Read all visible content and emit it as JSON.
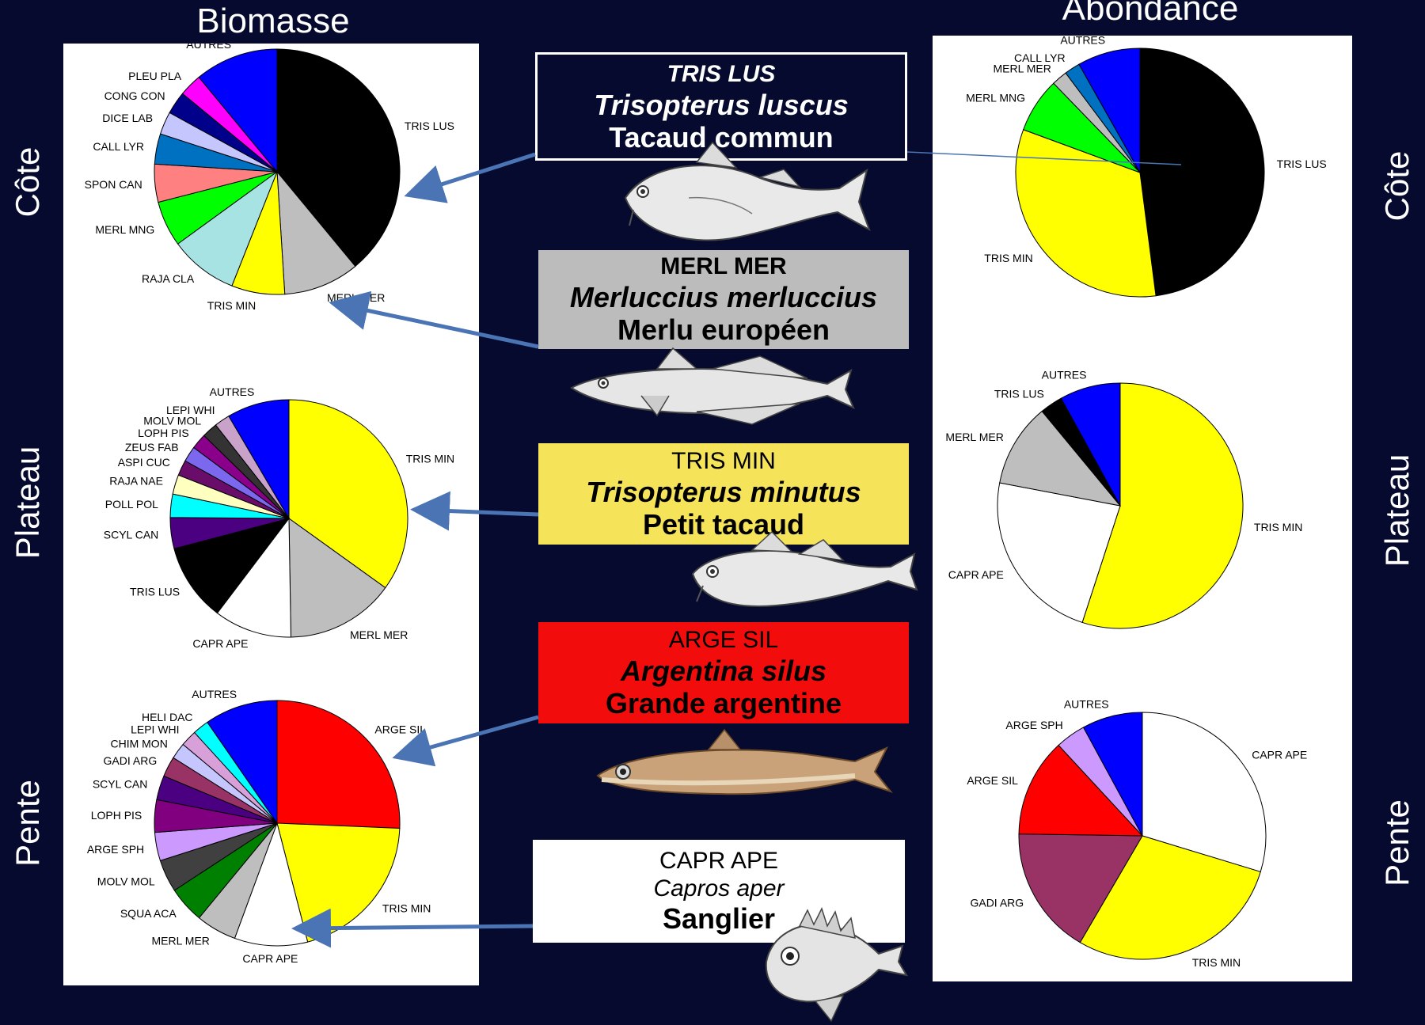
{
  "titles": {
    "left": "Biomasse",
    "right": "Abondance"
  },
  "rows": {
    "top": "Côte",
    "middle": "Plateau",
    "bottom": "Pente"
  },
  "species_boxes": [
    {
      "code": "TRIS LUS",
      "latin": "Trisopterus luscus",
      "common": "Tacaud commun",
      "bg": "#050a2e",
      "fg": "#ffffff",
      "border": "#ffffff"
    },
    {
      "code": "MERL MER",
      "latin": "Merluccius merluccius",
      "common": "Merlu européen",
      "bg": "#bcbcbc",
      "fg": "#000000",
      "border": "#9a9a9a"
    },
    {
      "code": "TRIS MIN",
      "latin": "Trisopterus minutus",
      "common": "Petit tacaud",
      "bg": "#f5e35a",
      "fg": "#000000",
      "border": "#d9c640"
    },
    {
      "code": "ARGE SIL",
      "latin": "Argentina silus",
      "common": "Grande argentine",
      "bg": "#f20c0c",
      "fg": "#000000",
      "border": "#c00000"
    },
    {
      "code": "CAPR APE",
      "latin": "Capros aper",
      "common": "Sanglier",
      "bg": "#ffffff",
      "fg": "#000000",
      "border": "#ffffff"
    }
  ],
  "fish_icons": [
    "tacaud-fish-icon",
    "merlu-fish-icon",
    "petit-tacaud-fish-icon",
    "argentine-fish-icon",
    "sanglier-fish-icon"
  ],
  "chart_data": [
    {
      "type": "pie",
      "title": "Biomasse",
      "row": "Côte",
      "slices": [
        {
          "label": "TRIS LUS",
          "value": 39,
          "color": "#000000"
        },
        {
          "label": "MERL MER",
          "value": 10,
          "color": "#bebebe"
        },
        {
          "label": "TRIS MIN",
          "value": 7,
          "color": "#ffff00"
        },
        {
          "label": "RAJA CLA",
          "value": 9,
          "color": "#a7e3e3"
        },
        {
          "label": "MERL MNG",
          "value": 6,
          "color": "#00ff00"
        },
        {
          "label": "SPON CAN",
          "value": 5,
          "color": "#ff8080"
        },
        {
          "label": "CALL LYR",
          "value": 4,
          "color": "#0070c0"
        },
        {
          "label": "DICE LAB",
          "value": 3,
          "color": "#c6c6ff"
        },
        {
          "label": "CONG CON",
          "value": 3,
          "color": "#00008b"
        },
        {
          "label": "PLEU PLA",
          "value": 3,
          "color": "#ff00ff"
        },
        {
          "label": "AUTRES",
          "value": 11,
          "color": "#0000ff"
        }
      ]
    },
    {
      "type": "pie",
      "title": "Biomasse",
      "row": "Plateau",
      "slices": [
        {
          "label": "TRIS MIN",
          "value": 33,
          "color": "#ffff00"
        },
        {
          "label": "MERL MER",
          "value": 14,
          "color": "#bebebe"
        },
        {
          "label": "CAPR APE",
          "value": 10,
          "color": "#ffffff"
        },
        {
          "label": "TRIS LUS",
          "value": 10,
          "color": "#000000"
        },
        {
          "label": "SCYL CAN",
          "value": 4,
          "color": "#4b0082"
        },
        {
          "label": "POLL POL",
          "value": 3,
          "color": "#00ffff"
        },
        {
          "label": "RAJA NAE",
          "value": 2.5,
          "color": "#ffffc0"
        },
        {
          "label": "ASPI CUC",
          "value": 2,
          "color": "#6a0d6a"
        },
        {
          "label": "ZEUS FAB",
          "value": 2,
          "color": "#7b68ee"
        },
        {
          "label": "LOPH PIS",
          "value": 2,
          "color": "#8b008b"
        },
        {
          "label": "MOLV MOL",
          "value": 2,
          "color": "#333333"
        },
        {
          "label": "LEPI WHI",
          "value": 2,
          "color": "#c8a2c8"
        },
        {
          "label": "AUTRES",
          "value": 8,
          "color": "#0000ff"
        }
      ]
    },
    {
      "type": "pie",
      "title": "Biomasse",
      "row": "Pente",
      "slices": [
        {
          "label": "ARGE SIL",
          "value": 24,
          "color": "#ff0000"
        },
        {
          "label": "TRIS MIN",
          "value": 19,
          "color": "#ffff00"
        },
        {
          "label": "CAPR APE",
          "value": 9,
          "color": "#ffffff"
        },
        {
          "label": "MERL MER",
          "value": 5,
          "color": "#bebebe"
        },
        {
          "label": "SQUA ACA",
          "value": 4.5,
          "color": "#008000"
        },
        {
          "label": "MOLV MOL",
          "value": 4,
          "color": "#404040"
        },
        {
          "label": "ARGE SPH",
          "value": 3.5,
          "color": "#cc99ff"
        },
        {
          "label": "LOPH PIS",
          "value": 4,
          "color": "#800080"
        },
        {
          "label": "SCYL CAN",
          "value": 3,
          "color": "#4b0082"
        },
        {
          "label": "GADI ARG",
          "value": 2.5,
          "color": "#993366"
        },
        {
          "label": "CHIM MON",
          "value": 2,
          "color": "#c6c6ff"
        },
        {
          "label": "LEPI WHI",
          "value": 2,
          "color": "#d8a0d8"
        },
        {
          "label": "HELI DAC",
          "value": 2,
          "color": "#00ffff"
        },
        {
          "label": "AUTRES",
          "value": 9,
          "color": "#0000ff"
        }
      ]
    },
    {
      "type": "pie",
      "title": "Abondance",
      "row": "Côte",
      "slices": [
        {
          "label": "TRIS LUS",
          "value": 47,
          "color": "#000000"
        },
        {
          "label": "TRIS MIN",
          "value": 32,
          "color": "#ffff00"
        },
        {
          "label": "MERL MNG",
          "value": 7,
          "color": "#00ff00"
        },
        {
          "label": "MERL MER",
          "value": 2,
          "color": "#bebebe"
        },
        {
          "label": "CALL LYR",
          "value": 2,
          "color": "#0070c0"
        },
        {
          "label": "AUTRES",
          "value": 8,
          "color": "#0000ff"
        }
      ]
    },
    {
      "type": "pie",
      "title": "Abondance",
      "row": "Plateau",
      "slices": [
        {
          "label": "TRIS MIN",
          "value": 55,
          "color": "#ffff00"
        },
        {
          "label": "CAPR APE",
          "value": 23,
          "color": "#ffffff"
        },
        {
          "label": "MERL MER",
          "value": 11,
          "color": "#bebebe"
        },
        {
          "label": "TRIS LUS",
          "value": 3,
          "color": "#000000"
        },
        {
          "label": "AUTRES",
          "value": 8,
          "color": "#0000ff"
        }
      ]
    },
    {
      "type": "pie",
      "title": "Abondance",
      "row": "Pente",
      "slices": [
        {
          "label": "CAPR APE",
          "value": 30,
          "color": "#ffffff"
        },
        {
          "label": "TRIS MIN",
          "value": 29,
          "color": "#ffff00"
        },
        {
          "label": "GADI ARG",
          "value": 17,
          "color": "#993366"
        },
        {
          "label": "ARGE SIL",
          "value": 13,
          "color": "#ff0000"
        },
        {
          "label": "ARGE SPH",
          "value": 4,
          "color": "#cc99ff"
        },
        {
          "label": "AUTRES",
          "value": 8,
          "color": "#0000ff"
        }
      ]
    }
  ]
}
